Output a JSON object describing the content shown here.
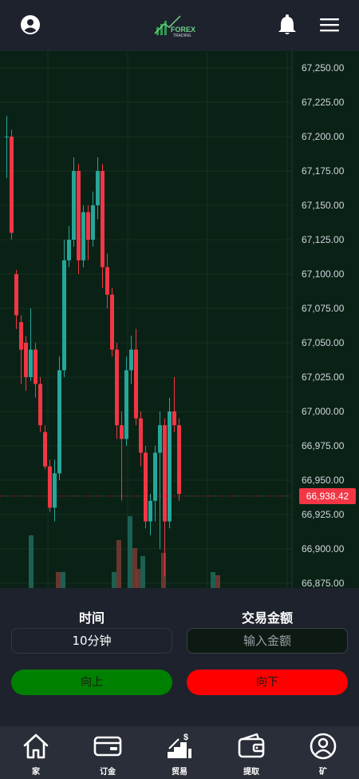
{
  "header": {
    "logo_text": "FOREX",
    "logo_subtext": "TRADING",
    "icons": [
      "user-circle-icon",
      "bell-icon",
      "menu-icon"
    ]
  },
  "chart": {
    "price_axis": [
      "67,250.00",
      "67,225.00",
      "67,200.00",
      "67,175.00",
      "67,150.00",
      "67,125.00",
      "67,100.00",
      "67,075.00",
      "67,050.00",
      "67,025.00",
      "67,000.00",
      "66,975.00",
      "66,950.00",
      "66,925.00",
      "66,900.00",
      "66,875.00"
    ],
    "current_price": "66,938.42",
    "colors": {
      "up": "#26a69a",
      "down": "#f23645",
      "background": "#0a2216"
    }
  },
  "chart_data": {
    "type": "candlestick",
    "ylim": [
      66865,
      67265
    ],
    "current": 66938.42,
    "candles": [
      [
        67200,
        67200,
        67215,
        67170
      ],
      [
        67200,
        67130,
        67205,
        67125
      ],
      [
        67100,
        67070,
        67103,
        67060
      ],
      [
        67065,
        67045,
        67070,
        67020
      ],
      [
        67050,
        67025,
        67055,
        67015
      ],
      [
        67025,
        67045,
        67075,
        67022
      ],
      [
        67045,
        67020,
        67050,
        67010
      ],
      [
        67020,
        66990,
        67025,
        66985
      ],
      [
        66985,
        66960,
        66990,
        66958
      ],
      [
        66960,
        66930,
        66965,
        66927
      ],
      [
        66930,
        66955,
        66965,
        66920
      ],
      [
        66955,
        67030,
        67040,
        66950
      ],
      [
        67030,
        67110,
        67125,
        67025
      ],
      [
        67110,
        67125,
        67135,
        67105
      ],
      [
        67125,
        67175,
        67185,
        67120
      ],
      [
        67175,
        67110,
        67180,
        67100
      ],
      [
        67110,
        67145,
        67150,
        67105
      ],
      [
        67145,
        67125,
        67150,
        67110
      ],
      [
        67125,
        67150,
        67160,
        67120
      ],
      [
        67150,
        67175,
        67185,
        67140
      ],
      [
        67175,
        67105,
        67180,
        67090
      ],
      [
        67105,
        67085,
        67115,
        67075
      ],
      [
        67085,
        67045,
        67090,
        67040
      ],
      [
        67045,
        66990,
        67050,
        66980
      ],
      [
        66990,
        66980,
        67000,
        66935
      ],
      [
        66980,
        67030,
        67040,
        66975
      ],
      [
        67030,
        67045,
        67055,
        67020
      ],
      [
        67045,
        66995,
        67060,
        66990
      ],
      [
        66995,
        66970,
        67000,
        66960
      ],
      [
        66970,
        66920,
        66975,
        66915
      ],
      [
        66920,
        66935,
        66940,
        66910
      ],
      [
        66935,
        66970,
        66975,
        66920
      ],
      [
        66970,
        66990,
        67000,
        66900
      ],
      [
        66990,
        66920,
        66995,
        66880
      ],
      [
        66920,
        67000,
        67010,
        66915
      ],
      [
        67000,
        66990,
        67025,
        66985
      ],
      [
        66990,
        66940,
        66995,
        66935
      ]
    ]
  },
  "trade": {
    "time_label": "时间",
    "time_value": "10分钟",
    "amount_label": "交易金额",
    "amount_placeholder": "输入金额",
    "up_label": "向上",
    "down_label": "向下"
  },
  "nav": {
    "items": [
      {
        "label": "家",
        "icon": "home-icon"
      },
      {
        "label": "订金",
        "icon": "wallet-card-icon"
      },
      {
        "label": "贸易",
        "icon": "trade-stairs-icon"
      },
      {
        "label": "提取",
        "icon": "wallet-icon"
      },
      {
        "label": "矿",
        "icon": "user-circle-icon"
      }
    ]
  }
}
